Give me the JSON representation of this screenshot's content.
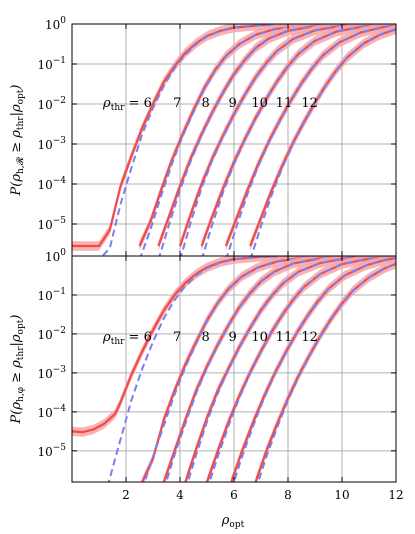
{
  "chart_data": [
    {
      "type": "line",
      "panel": "top",
      "ylabel": "P(ρ_{h,R} ≥ ρ_thr | ρ_opt)",
      "xlabel": "",
      "xlim": [
        0,
        12
      ],
      "ylim_log10": [
        -5.8,
        0
      ],
      "yscale": "log",
      "grid": true,
      "floor_log10": -5.55,
      "annotation_prefix": "ρ_thr = ",
      "annotation_values": [
        "6",
        "7",
        "8",
        "9",
        "10",
        "11",
        "12"
      ],
      "annotation_y_log10": -1.95,
      "annotation_x": [
        1.15,
        3.9,
        4.95,
        5.95,
        6.95,
        7.85,
        8.8
      ],
      "series": [
        {
          "threshold": 6,
          "x": [
            0.0,
            1.0,
            1.4,
            1.8,
            2.2,
            2.6,
            3.0,
            3.4,
            3.8,
            4.2,
            4.6,
            5.0,
            5.5,
            6.0,
            7.0,
            8.0,
            9.0,
            10.0,
            12.0
          ],
          "log10p": [
            -5.55,
            -5.55,
            -5.15,
            -4.05,
            -3.3,
            -2.6,
            -2.0,
            -1.45,
            -1.05,
            -0.72,
            -0.48,
            -0.3,
            -0.17,
            -0.09,
            -0.03,
            -0.01,
            0,
            0,
            0
          ],
          "theory_log10p": [
            -5.9,
            -5.9,
            -5.6,
            -4.5,
            -3.6,
            -2.75,
            -2.1,
            -1.55,
            -1.1,
            -0.76,
            -0.5,
            -0.31,
            -0.17,
            -0.09,
            -0.03,
            -0.01,
            0,
            0,
            0
          ]
        },
        {
          "threshold": 7,
          "x": [
            2.5,
            2.9,
            3.3,
            3.7,
            4.1,
            4.5,
            4.9,
            5.3,
            5.7,
            6.2,
            6.8,
            7.5,
            8.5,
            9.5,
            12.0
          ],
          "log10p": [
            -5.55,
            -4.95,
            -4.15,
            -3.4,
            -2.75,
            -2.15,
            -1.6,
            -1.15,
            -0.8,
            -0.5,
            -0.27,
            -0.13,
            -0.04,
            -0.01,
            0
          ],
          "theory_log10p": [
            -5.9,
            -5.15,
            -4.3,
            -3.5,
            -2.8,
            -2.2,
            -1.62,
            -1.17,
            -0.81,
            -0.5,
            -0.27,
            -0.13,
            -0.04,
            -0.01,
            0
          ]
        },
        {
          "threshold": 8,
          "x": [
            3.2,
            3.6,
            4.0,
            4.4,
            4.8,
            5.2,
            5.6,
            6.0,
            6.4,
            6.8,
            7.3,
            8.0,
            9.0,
            10.0,
            12.0
          ],
          "log10p": [
            -5.55,
            -4.8,
            -4.05,
            -3.35,
            -2.75,
            -2.2,
            -1.7,
            -1.25,
            -0.9,
            -0.6,
            -0.36,
            -0.17,
            -0.05,
            -0.01,
            0
          ],
          "theory_log10p": [
            -5.9,
            -5.0,
            -4.15,
            -3.42,
            -2.78,
            -2.22,
            -1.72,
            -1.27,
            -0.91,
            -0.61,
            -0.36,
            -0.17,
            -0.05,
            -0.01,
            0
          ]
        },
        {
          "threshold": 9,
          "x": [
            4.0,
            4.4,
            4.8,
            5.2,
            5.6,
            6.0,
            6.4,
            6.8,
            7.2,
            7.6,
            8.2,
            9.0,
            10.0,
            11.0,
            12.0
          ],
          "log10p": [
            -5.55,
            -4.75,
            -4.0,
            -3.35,
            -2.78,
            -2.25,
            -1.77,
            -1.33,
            -0.97,
            -0.67,
            -0.37,
            -0.16,
            -0.04,
            -0.01,
            0
          ],
          "theory_log10p": [
            -5.9,
            -4.95,
            -4.1,
            -3.4,
            -2.8,
            -2.27,
            -1.78,
            -1.34,
            -0.98,
            -0.67,
            -0.37,
            -0.16,
            -0.04,
            -0.01,
            0
          ]
        },
        {
          "threshold": 10,
          "x": [
            4.8,
            5.2,
            5.6,
            6.0,
            6.4,
            6.8,
            7.2,
            7.6,
            8.0,
            8.4,
            9.0,
            9.8,
            10.8,
            12.0
          ],
          "log10p": [
            -5.55,
            -4.8,
            -4.1,
            -3.45,
            -2.88,
            -2.35,
            -1.87,
            -1.43,
            -1.05,
            -0.74,
            -0.42,
            -0.19,
            -0.06,
            -0.01
          ],
          "theory_log10p": [
            -5.9,
            -5.0,
            -4.2,
            -3.5,
            -2.9,
            -2.37,
            -1.88,
            -1.44,
            -1.06,
            -0.74,
            -0.42,
            -0.19,
            -0.06,
            -0.01
          ]
        },
        {
          "threshold": 11,
          "x": [
            5.7,
            6.1,
            6.5,
            6.9,
            7.3,
            7.7,
            8.1,
            8.5,
            8.9,
            9.3,
            9.9,
            10.7,
            11.5,
            12.0
          ],
          "log10p": [
            -5.55,
            -4.85,
            -4.15,
            -3.5,
            -2.92,
            -2.4,
            -1.92,
            -1.48,
            -1.1,
            -0.78,
            -0.46,
            -0.21,
            -0.08,
            -0.04
          ],
          "theory_log10p": [
            -5.9,
            -5.05,
            -4.25,
            -3.55,
            -2.94,
            -2.42,
            -1.93,
            -1.49,
            -1.11,
            -0.78,
            -0.46,
            -0.21,
            -0.08,
            -0.04
          ]
        },
        {
          "threshold": 12,
          "x": [
            6.6,
            7.0,
            7.4,
            7.8,
            8.2,
            8.6,
            9.0,
            9.4,
            9.8,
            10.2,
            10.8,
            11.4,
            12.0
          ],
          "log10p": [
            -5.55,
            -4.85,
            -4.15,
            -3.52,
            -2.95,
            -2.44,
            -1.97,
            -1.53,
            -1.15,
            -0.83,
            -0.49,
            -0.27,
            -0.13
          ],
          "theory_log10p": [
            -5.9,
            -5.05,
            -4.27,
            -3.57,
            -2.97,
            -2.46,
            -1.98,
            -1.54,
            -1.16,
            -0.83,
            -0.49,
            -0.27,
            -0.13
          ]
        }
      ]
    },
    {
      "type": "line",
      "panel": "bottom",
      "ylabel": "P(ρ_{h,φ} ≥ ρ_thr | ρ_opt)",
      "xlabel": "ρ_opt",
      "xlim": [
        0,
        12
      ],
      "ylim_log10": [
        -5.8,
        0
      ],
      "yscale": "log",
      "grid": true,
      "floor_log10": -5.8,
      "annotation_prefix": "ρ_thr = ",
      "annotation_values": [
        "6",
        "7",
        "8",
        "9",
        "10",
        "11",
        "12"
      ],
      "annotation_y_log10": -2.05,
      "annotation_x": [
        1.15,
        3.9,
        4.95,
        5.95,
        6.95,
        7.85,
        8.8
      ],
      "series": [
        {
          "threshold": 6,
          "x": [
            0.0,
            0.4,
            0.8,
            1.2,
            1.6,
            1.8,
            2.2,
            2.6,
            3.0,
            3.4,
            3.8,
            4.2,
            4.6,
            5.0,
            5.5,
            6.0,
            7.0,
            8.0,
            9.0,
            12.0
          ],
          "log10p": [
            -4.5,
            -4.52,
            -4.45,
            -4.3,
            -4.05,
            -3.75,
            -3.05,
            -2.45,
            -1.9,
            -1.4,
            -1.0,
            -0.69,
            -0.46,
            -0.29,
            -0.16,
            -0.08,
            -0.02,
            0,
            0,
            0
          ],
          "theory_log10p": [
            -7.0,
            -7.0,
            -7.0,
            -6.2,
            -5.2,
            -4.7,
            -3.7,
            -2.9,
            -2.2,
            -1.6,
            -1.13,
            -0.77,
            -0.5,
            -0.31,
            -0.17,
            -0.08,
            -0.02,
            0,
            0,
            0
          ]
        },
        {
          "threshold": 7,
          "x": [
            2.6,
            3.0,
            3.4,
            3.8,
            4.2,
            4.6,
            5.0,
            5.4,
            5.8,
            6.3,
            6.9,
            7.6,
            8.6,
            9.6,
            12.0
          ],
          "log10p": [
            -5.8,
            -5.2,
            -4.2,
            -3.45,
            -2.78,
            -2.2,
            -1.65,
            -1.2,
            -0.84,
            -0.52,
            -0.29,
            -0.14,
            -0.04,
            -0.01,
            0
          ],
          "theory_log10p": [
            -6.0,
            -5.15,
            -4.35,
            -3.55,
            -2.85,
            -2.24,
            -1.67,
            -1.21,
            -0.85,
            -0.53,
            -0.29,
            -0.14,
            -0.04,
            -0.01,
            0
          ]
        },
        {
          "threshold": 8,
          "x": [
            3.4,
            3.8,
            4.2,
            4.6,
            5.0,
            5.4,
            5.8,
            6.2,
            6.6,
            7.0,
            7.5,
            8.2,
            9.2,
            10.2,
            12.0
          ],
          "log10p": [
            -5.8,
            -5.0,
            -4.2,
            -3.45,
            -2.83,
            -2.27,
            -1.77,
            -1.31,
            -0.95,
            -0.65,
            -0.4,
            -0.19,
            -0.06,
            -0.01,
            0
          ],
          "theory_log10p": [
            -6.0,
            -5.1,
            -4.3,
            -3.52,
            -2.86,
            -2.3,
            -1.78,
            -1.32,
            -0.96,
            -0.65,
            -0.4,
            -0.19,
            -0.06,
            -0.01,
            0
          ]
        },
        {
          "threshold": 9,
          "x": [
            4.2,
            4.6,
            5.0,
            5.4,
            5.8,
            6.2,
            6.6,
            7.0,
            7.4,
            7.8,
            8.4,
            9.2,
            10.2,
            11.2,
            12.0
          ],
          "log10p": [
            -5.8,
            -4.95,
            -4.15,
            -3.45,
            -2.88,
            -2.33,
            -1.84,
            -1.39,
            -1.02,
            -0.71,
            -0.4,
            -0.18,
            -0.05,
            -0.01,
            0
          ],
          "theory_log10p": [
            -6.0,
            -5.1,
            -4.25,
            -3.52,
            -2.9,
            -2.35,
            -1.85,
            -1.4,
            -1.03,
            -0.71,
            -0.4,
            -0.18,
            -0.05,
            -0.01,
            0
          ]
        },
        {
          "threshold": 10,
          "x": [
            5.0,
            5.4,
            5.8,
            6.2,
            6.6,
            7.0,
            7.4,
            7.8,
            8.2,
            8.6,
            9.2,
            10.0,
            11.0,
            12.0
          ],
          "log10p": [
            -5.8,
            -5.0,
            -4.25,
            -3.58,
            -2.98,
            -2.44,
            -1.94,
            -1.5,
            -1.11,
            -0.79,
            -0.46,
            -0.21,
            -0.07,
            -0.02
          ],
          "theory_log10p": [
            -6.0,
            -5.15,
            -4.35,
            -3.63,
            -3.0,
            -2.46,
            -1.95,
            -1.51,
            -1.12,
            -0.79,
            -0.46,
            -0.21,
            -0.07,
            -0.02
          ]
        },
        {
          "threshold": 11,
          "x": [
            5.9,
            6.3,
            6.7,
            7.1,
            7.5,
            7.9,
            8.3,
            8.7,
            9.1,
            9.5,
            10.1,
            10.9,
            11.6,
            12.0
          ],
          "log10p": [
            -5.8,
            -5.0,
            -4.28,
            -3.62,
            -3.02,
            -2.49,
            -2.0,
            -1.56,
            -1.17,
            -0.84,
            -0.5,
            -0.24,
            -0.1,
            -0.05
          ],
          "theory_log10p": [
            -6.0,
            -5.15,
            -4.38,
            -3.67,
            -3.05,
            -2.51,
            -2.01,
            -1.57,
            -1.18,
            -0.84,
            -0.5,
            -0.24,
            -0.1,
            -0.05
          ]
        },
        {
          "threshold": 12,
          "x": [
            6.8,
            7.2,
            7.6,
            8.0,
            8.4,
            8.8,
            9.2,
            9.6,
            10.0,
            10.4,
            11.0,
            11.6,
            12.0
          ],
          "log10p": [
            -5.8,
            -5.0,
            -4.3,
            -3.65,
            -3.06,
            -2.54,
            -2.05,
            -1.61,
            -1.22,
            -0.89,
            -0.55,
            -0.31,
            -0.2
          ],
          "theory_log10p": [
            -6.0,
            -5.15,
            -4.4,
            -3.7,
            -3.09,
            -2.56,
            -2.06,
            -1.62,
            -1.23,
            -0.89,
            -0.55,
            -0.31,
            -0.2
          ]
        }
      ]
    }
  ],
  "axis": {
    "x_ticks": [
      "2",
      "4",
      "6",
      "8",
      "10",
      "12"
    ],
    "y_tick_base": "10",
    "y_tick_exponents_top": [
      "0",
      "−1",
      "−2",
      "−3",
      "−4",
      "−5"
    ],
    "y_tick_exponents_bottom": [
      "0",
      "−1",
      "−2",
      "−3",
      "−4",
      "−5"
    ],
    "xlabel_main": "ρ",
    "xlabel_sub": "opt",
    "ylabel_top": {
      "pre": "P(ρ",
      "sub": "h,𝓡",
      "mid": " ≥ ρ",
      "sub2": "thr",
      "post": "|ρ",
      "sub3": "opt",
      "end": ")"
    },
    "ylabel_bottom": {
      "pre": "P(ρ",
      "sub": "h,φ",
      "mid": " ≥ ρ",
      "sub2": "thr",
      "post": "|ρ",
      "sub3": "opt",
      "end": ")"
    },
    "annot_rho": "ρ",
    "annot_sub": "thr",
    "annot_eq": " = "
  },
  "colors": {
    "simulated": "#ef4b4b",
    "band": "#f7a4a4",
    "theory": "#7a7ef0"
  }
}
